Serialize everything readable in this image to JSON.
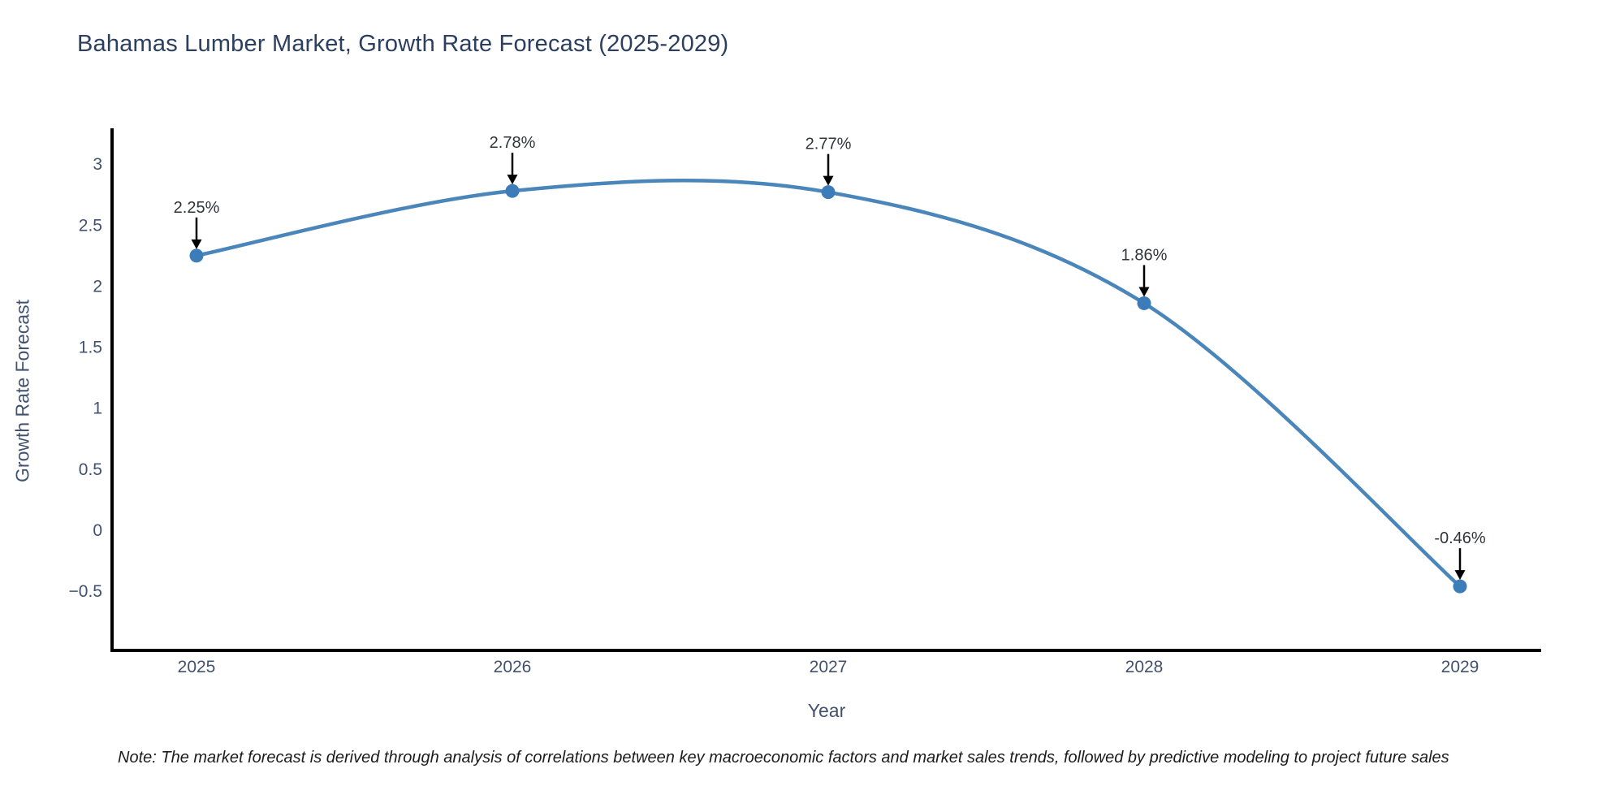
{
  "title": "Bahamas Lumber Market, Growth Rate Forecast (2025-2029)",
  "note": "Note: The market forecast is derived through analysis of correlations between key macroeconomic factors and market sales trends, followed by predictive modeling to project future sales",
  "chart_data": {
    "type": "line",
    "title": "Bahamas Lumber Market, Growth Rate Forecast (2025-2029)",
    "xlabel": "Year",
    "ylabel": "Growth Rate Forecast",
    "x": [
      2025,
      2026,
      2027,
      2028,
      2029
    ],
    "values": [
      2.25,
      2.78,
      2.77,
      1.86,
      -0.46
    ],
    "point_labels": [
      "2.25%",
      "2.78%",
      "2.77%",
      "1.86%",
      "-0.46%"
    ],
    "xtick_labels": [
      "2025",
      "2026",
      "2027",
      "2028",
      "2029"
    ],
    "yticks": [
      3,
      2.5,
      2,
      1.5,
      1,
      0.5,
      0,
      -0.5
    ],
    "ytick_labels": [
      "3",
      "2.5",
      "2",
      "1.5",
      "1",
      "0.5",
      "0",
      "−0.5"
    ],
    "ylim": [
      -1.0,
      3.3
    ],
    "grid": false,
    "legend": false,
    "smooth": true,
    "line_color": "#4a86ba",
    "marker_color": "#3c7cb8",
    "axis_color": "#000000",
    "annotation_arrow_color": "#000000"
  }
}
